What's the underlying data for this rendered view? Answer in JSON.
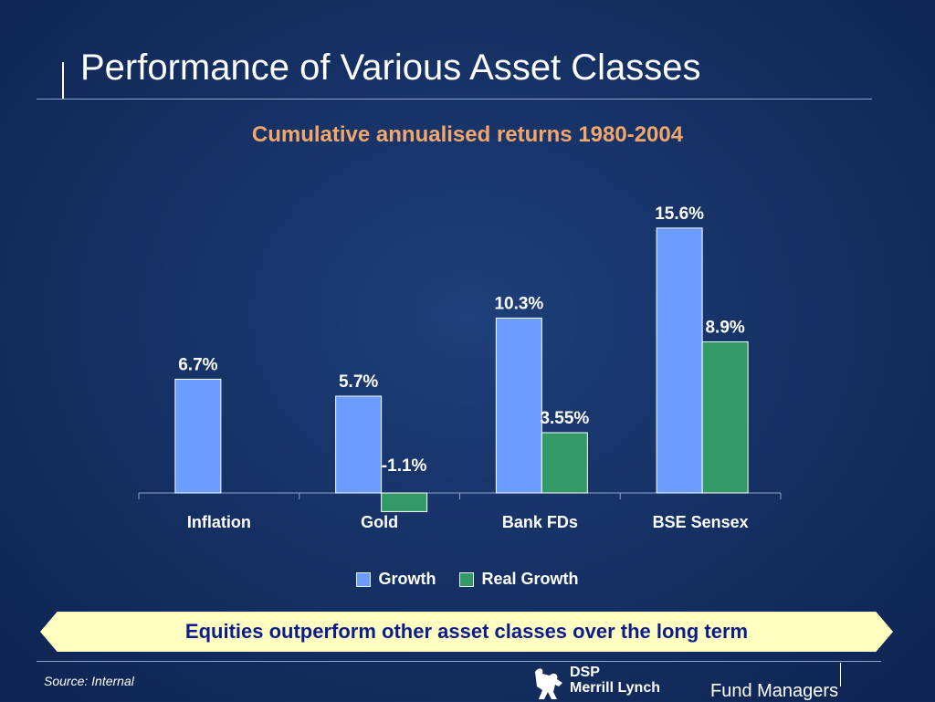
{
  "header": {
    "title": "Performance of Various Asset Classes"
  },
  "chart_data": {
    "type": "bar",
    "title": "Cumulative annualised returns 1980-2004",
    "categories": [
      "Inflation",
      "Gold",
      "Bank FDs",
      "BSE Sensex"
    ],
    "series": [
      {
        "name": "Growth",
        "values": [
          6.7,
          5.7,
          10.3,
          15.6
        ],
        "labels": [
          "6.7%",
          "5.7%",
          "10.3%",
          "15.6%"
        ],
        "color": "#6b9cff"
      },
      {
        "name": "Real Growth",
        "values": [
          null,
          -1.1,
          3.55,
          8.9
        ],
        "labels": [
          "",
          "-1.1%",
          "3.55%",
          "8.9%"
        ],
        "color": "#339966"
      }
    ],
    "xlabel": "",
    "ylabel": "",
    "grid": false,
    "legend": "bottom"
  },
  "banner": {
    "text": "Equities outperform other asset classes over the long term"
  },
  "footer": {
    "source": "Source: Internal",
    "logo_line1": "DSP",
    "logo_line2": "Merrill Lynch",
    "logo_tagline": "Fund Managers",
    "logo_icon": "bull-icon"
  }
}
